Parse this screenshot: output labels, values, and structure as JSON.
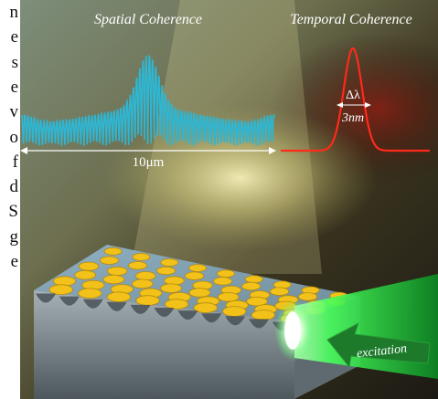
{
  "text_strip": [
    "n",
    "e",
    "s",
    "e",
    "v",
    "o",
    "f",
    "d",
    "S",
    "g",
    "e"
  ],
  "labels": {
    "spatial_title": "Spatial Coherence",
    "temporal_title": "Temporal Coherence",
    "width_label": "10μm",
    "delta_lambda": "Δλ",
    "linewidth": "3nm",
    "excitation": "excitation"
  },
  "colors": {
    "spatial_trace": "#2fb6d2",
    "temporal_trace": "#ff2a1a",
    "beam": "#46ff5a",
    "wells": "#f2c21a"
  },
  "icons": {
    "excitation_arrow": "arrow-left-icon"
  }
}
